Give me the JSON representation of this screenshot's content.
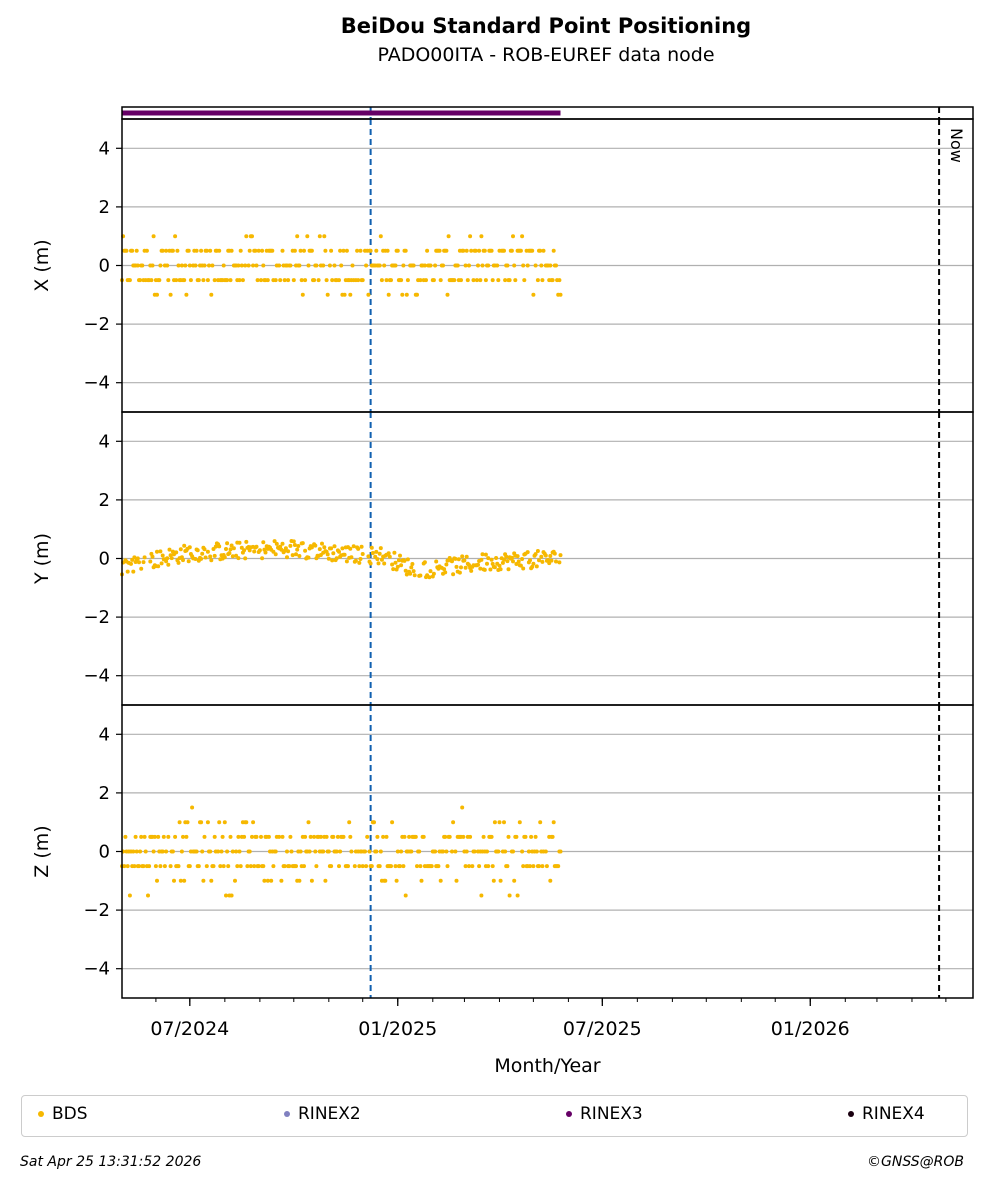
{
  "title": "BeiDou Standard Point Positioning",
  "subtitle": "PADO00ITA - ROB-EUREF data node",
  "now_label": "Now",
  "timestamp": "Sat Apr 25 13:31:52 2026",
  "credit": "©GNSS@ROB",
  "colors": {
    "bds": "#f6b800",
    "rinex2": "#8080c0",
    "rinex3": "#660066",
    "rinex4": "#1a0010",
    "marker_line": "#1060b0",
    "now_line": "#000000",
    "grid": "#b0b0b0"
  },
  "legend": [
    {
      "label": "BDS",
      "color": "#f6b800"
    },
    {
      "label": "RINEX2",
      "color": "#8080c0"
    },
    {
      "label": "RINEX3",
      "color": "#660066"
    },
    {
      "label": "RINEX4",
      "color": "#1a0010"
    }
  ],
  "chart_data": {
    "type": "scatter",
    "xlabel": "Month/Year",
    "xlim": [
      "2024-05-02",
      "2026-05-25"
    ],
    "x_tick_labels": [
      "07/2024",
      "01/2025",
      "07/2025",
      "01/2026"
    ],
    "x_ticks": [
      "2024-07-01",
      "2025-01-01",
      "2025-07-01",
      "2026-01-01"
    ],
    "marker_date": "2024-12-08",
    "now_date": "2026-04-25",
    "data_start": "2024-05-02",
    "data_end": "2025-05-25",
    "rinex3_availability": {
      "start": "2024-05-02",
      "end": "2025-05-25",
      "y_label": ""
    },
    "panels": [
      {
        "ylabel": "X (m)",
        "ylim": [
          -5,
          5
        ],
        "yticks": [
          -4,
          -2,
          0,
          2,
          4
        ],
        "levels": [
          -1,
          -0.5,
          0,
          0.5,
          1
        ],
        "level_weights": [
          0.06,
          0.3,
          0.28,
          0.3,
          0.06
        ]
      },
      {
        "ylabel": "Y (m)",
        "ylim": [
          -5,
          5
        ],
        "yticks": [
          -4,
          -2,
          0,
          2,
          4
        ],
        "trend": [
          [
            0,
            -0.25
          ],
          [
            60,
            0.2
          ],
          [
            150,
            0.35
          ],
          [
            200,
            0.15
          ],
          [
            230,
            0.1
          ],
          [
            260,
            -0.4
          ],
          [
            330,
            -0.1
          ],
          [
            388,
            0.0
          ]
        ],
        "scatter_amp": 0.3
      },
      {
        "ylabel": "Z (m)",
        "ylim": [
          -5,
          5
        ],
        "yticks": [
          -4,
          -2,
          0,
          2,
          4
        ],
        "levels": [
          -1.5,
          -1,
          -0.5,
          0,
          0.5,
          1,
          1.5
        ],
        "level_weights": [
          0.01,
          0.06,
          0.28,
          0.35,
          0.24,
          0.05,
          0.01
        ]
      }
    ]
  }
}
